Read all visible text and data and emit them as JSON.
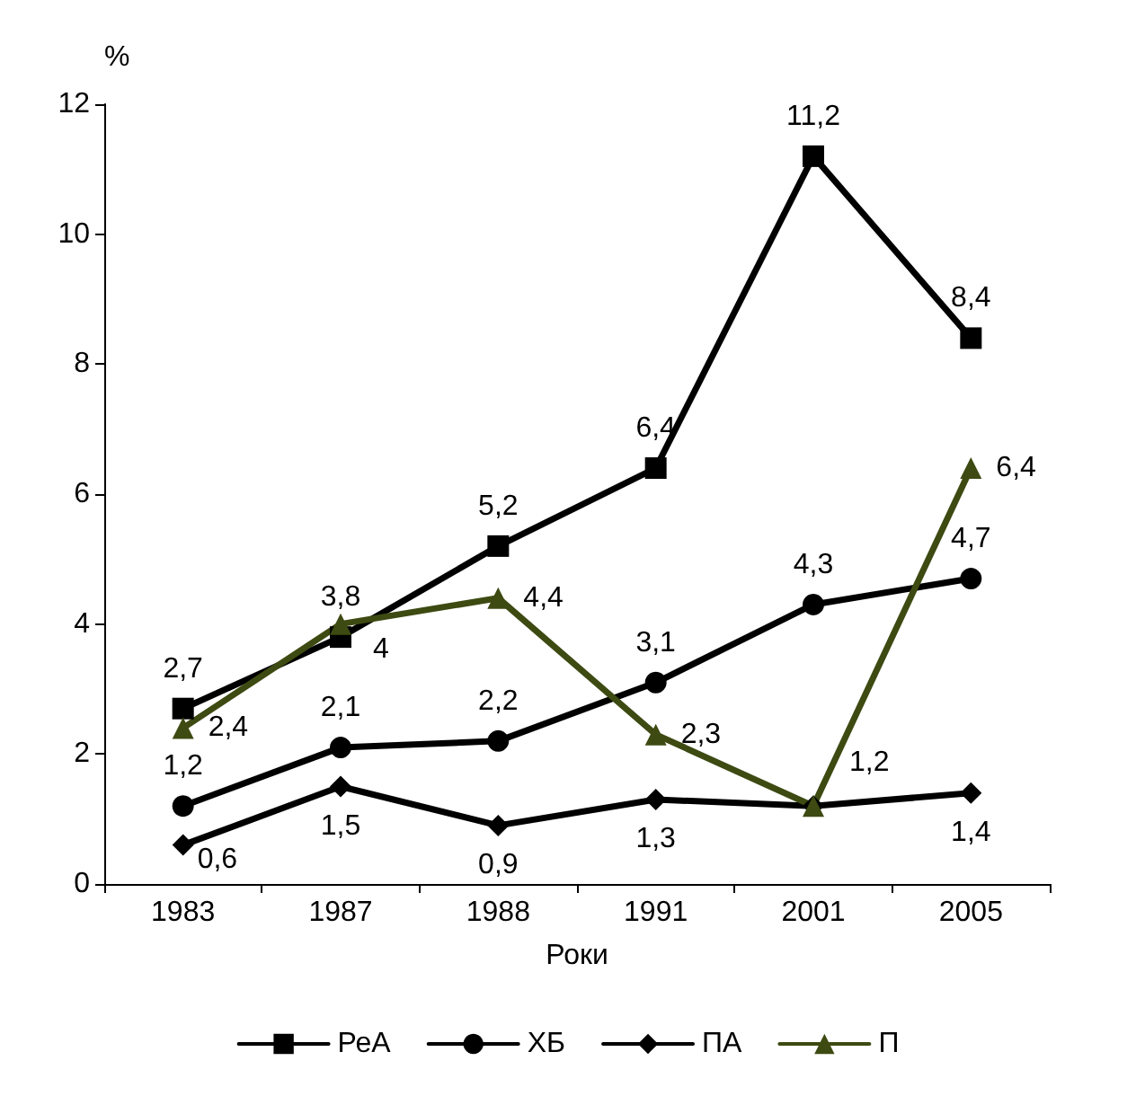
{
  "chart_data": {
    "type": "line",
    "ylabel": "%",
    "xlabel": "Роки",
    "categories": [
      "1983",
      "1987",
      "1988",
      "1991",
      "2001",
      "2005"
    ],
    "ylim": [
      0,
      12
    ],
    "yticks": [
      0,
      2,
      4,
      6,
      8,
      10,
      12
    ],
    "grid": false,
    "legend": "bottom",
    "series": [
      {
        "name": "РеА",
        "color": "#000000",
        "marker": "square",
        "values": [
          2.7,
          3.8,
          5.2,
          6.4,
          11.2,
          8.4
        ],
        "value_labels": [
          "2,7",
          "3,8",
          "5,2",
          "6,4",
          "11,2",
          "8,4"
        ]
      },
      {
        "name": "ХБ",
        "color": "#000000",
        "marker": "circle",
        "values": [
          1.2,
          2.1,
          2.2,
          3.1,
          4.3,
          4.7
        ],
        "value_labels": [
          "1,2",
          "2,1",
          "2,2",
          "3,1",
          "4,3",
          "4,7"
        ]
      },
      {
        "name": "ПА",
        "color": "#000000",
        "marker": "diamond",
        "values": [
          0.6,
          1.5,
          0.9,
          1.3,
          1.2,
          1.4
        ],
        "value_labels": [
          "0,6",
          "1,5",
          "0,9",
          "1,3",
          null,
          "1,4"
        ]
      },
      {
        "name": "П",
        "color": "#3d4a12",
        "marker": "triangle",
        "values": [
          2.4,
          4,
          4.4,
          2.3,
          1.2,
          6.4
        ],
        "value_labels": [
          "2,4",
          "4",
          "4,4",
          "2,3",
          "1,2",
          "6,4"
        ]
      }
    ]
  }
}
